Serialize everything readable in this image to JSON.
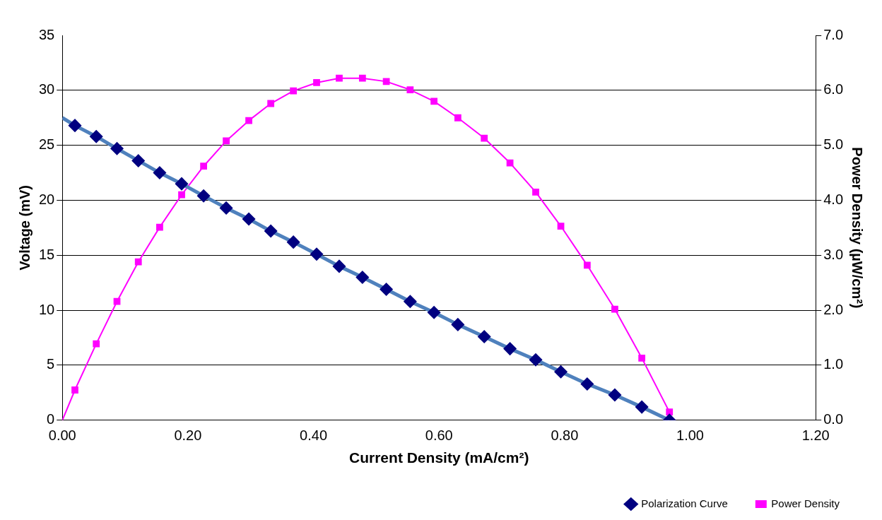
{
  "chart_data": {
    "type": "line",
    "xlabel": "Current Density (mA/cm²)",
    "ylabel": "Voltage (mV)",
    "y2label": "Power Density (µW/cm²)",
    "xlim": [
      0,
      1.2
    ],
    "xticks": [
      {
        "value": 0,
        "label": "0.00"
      },
      {
        "value": 0.2,
        "label": "0.20"
      },
      {
        "value": 0.4,
        "label": "0.40"
      },
      {
        "value": 0.6,
        "label": "0.60"
      },
      {
        "value": 0.8,
        "label": "0.80"
      },
      {
        "value": 1,
        "label": "1.00"
      },
      {
        "value": 1.2,
        "label": "1.20"
      }
    ],
    "ylim": [
      0,
      35
    ],
    "yticks": [
      0,
      5,
      10,
      15,
      20,
      25,
      30,
      35
    ],
    "y2lim": [
      0,
      7
    ],
    "y2ticks": [
      {
        "value": 0,
        "label": "0.0"
      },
      {
        "value": 1,
        "label": "1.0"
      },
      {
        "value": 2,
        "label": "2.0"
      },
      {
        "value": 3,
        "label": "3.0"
      },
      {
        "value": 4,
        "label": "4.0"
      },
      {
        "value": 5,
        "label": "5.0"
      },
      {
        "value": 6,
        "label": "6.0"
      },
      {
        "value": 7,
        "label": "7.0"
      }
    ],
    "grid": "y",
    "legend": "bottom right",
    "line_style": "solid",
    "series": [
      {
        "name": "Polarization Curve",
        "color": "#4f81bd",
        "marker": "diamond",
        "x": [
          0,
          0.02,
          0.054,
          0.087,
          0.121,
          0.155,
          0.19,
          0.225,
          0.261,
          0.297,
          0.332,
          0.368,
          0.405,
          0.441,
          0.478,
          0.516,
          0.554,
          0.592,
          0.63,
          0.672,
          0.713,
          0.754,
          0.794,
          0.836,
          0.88,
          0.923,
          0.967
        ],
        "values": [
          27.5,
          26.8,
          25.8,
          24.7,
          23.6,
          22.5,
          21.5,
          20.4,
          19.3,
          18.3,
          17.2,
          16.2,
          15.1,
          14.0,
          13.0,
          11.9,
          10.8,
          9.8,
          8.7,
          7.6,
          6.5,
          5.5,
          4.4,
          3.3,
          2.3,
          1.2,
          0.0
        ]
      },
      {
        "name": "Power Density",
        "color": "#ff00ff",
        "marker": "square",
        "axis": "y2",
        "x": [
          0,
          0.02,
          0.054,
          0.087,
          0.121,
          0.155,
          0.19,
          0.225,
          0.261,
          0.297,
          0.332,
          0.368,
          0.405,
          0.441,
          0.478,
          0.516,
          0.554,
          0.592,
          0.63,
          0.672,
          0.713,
          0.754,
          0.794,
          0.836,
          0.88,
          0.923,
          0.967
        ],
        "values": [
          0,
          0.55,
          1.39,
          2.16,
          2.88,
          3.51,
          4.1,
          4.62,
          5.08,
          5.45,
          5.76,
          5.99,
          6.14,
          6.22,
          6.22,
          6.16,
          6.01,
          5.8,
          5.5,
          5.13,
          4.68,
          4.15,
          3.53,
          2.82,
          2.02,
          1.13,
          0.15
        ]
      }
    ]
  }
}
